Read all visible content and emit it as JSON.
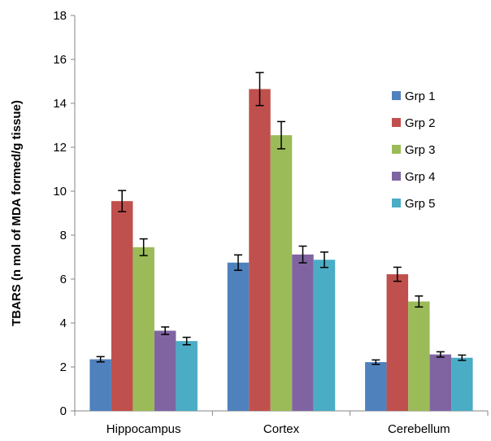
{
  "chart_data": {
    "type": "bar",
    "title": "",
    "xlabel": "",
    "ylabel": "TBARS (n mol of MDA formed/g tissue)",
    "ylim": [
      0,
      18
    ],
    "yticks": [
      0,
      2,
      4,
      6,
      8,
      10,
      12,
      14,
      16,
      18
    ],
    "grid": false,
    "legend_position": "right",
    "categories": [
      "Hippocampus",
      "Cortex",
      "Cerebellum"
    ],
    "series": [
      {
        "name": "Grp 1",
        "color": "#4F81BD",
        "values": [
          2.35,
          6.75,
          2.22
        ],
        "errors": [
          0.12,
          0.35,
          0.1
        ]
      },
      {
        "name": "Grp 2",
        "color": "#C0504D",
        "values": [
          9.55,
          14.65,
          6.22
        ],
        "errors": [
          0.48,
          0.75,
          0.32
        ]
      },
      {
        "name": "Grp 3",
        "color": "#9BBB59",
        "values": [
          7.45,
          12.55,
          4.98
        ],
        "errors": [
          0.38,
          0.62,
          0.25
        ]
      },
      {
        "name": "Grp 4",
        "color": "#8064A2",
        "values": [
          3.65,
          7.12,
          2.57
        ],
        "errors": [
          0.17,
          0.38,
          0.12
        ]
      },
      {
        "name": "Grp 5",
        "color": "#4BACC6",
        "values": [
          3.18,
          6.88,
          2.42
        ],
        "errors": [
          0.17,
          0.35,
          0.12
        ]
      }
    ]
  }
}
